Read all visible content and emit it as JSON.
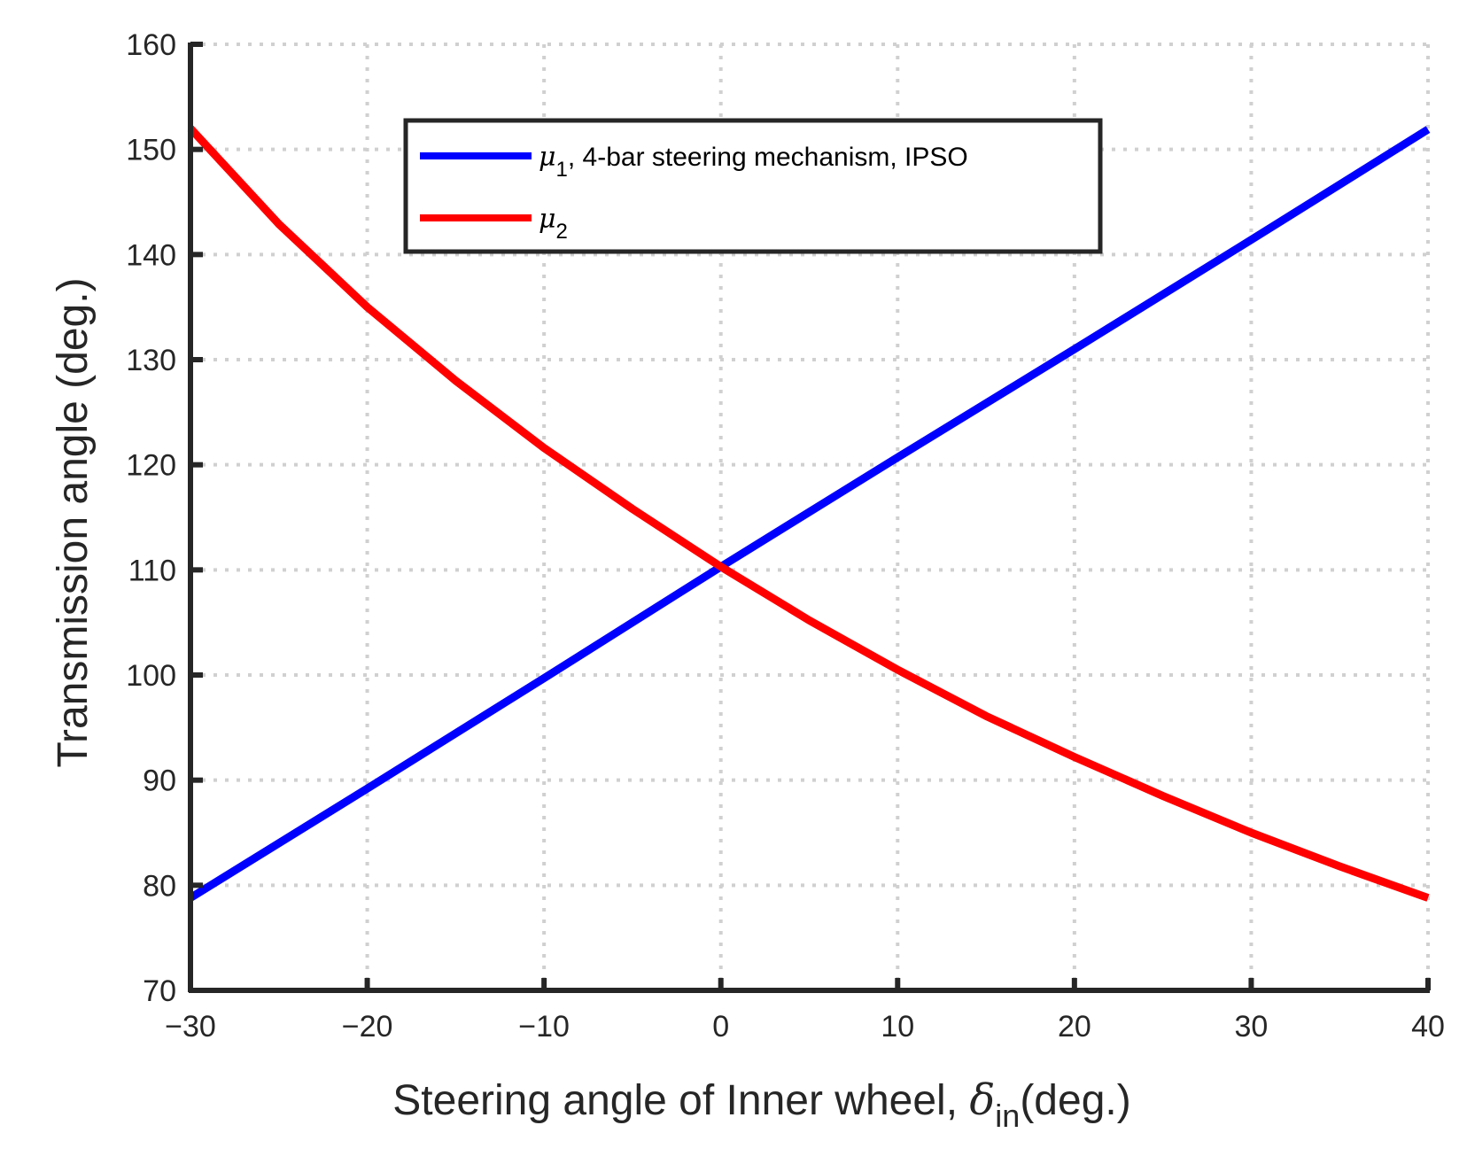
{
  "chart_data": {
    "type": "line",
    "title": "",
    "xlabel": {
      "main": "Steering angle of Inner wheel, ",
      "symbol": "δ",
      "subscript": "in",
      "suffix": "(deg.)"
    },
    "ylabel": "Transmission angle (deg.)",
    "xlim": [
      -30,
      40
    ],
    "ylim": [
      70,
      160
    ],
    "xticks": [
      -30,
      -20,
      -10,
      0,
      10,
      20,
      30,
      40
    ],
    "xtick_labels": [
      "−30",
      "−20",
      "−10",
      "0",
      "10",
      "20",
      "30",
      "40"
    ],
    "yticks": [
      70,
      80,
      90,
      100,
      110,
      120,
      130,
      140,
      150,
      160
    ],
    "ytick_labels": [
      "70",
      "80",
      "90",
      "100",
      "110",
      "120",
      "130",
      "140",
      "150",
      "160"
    ],
    "grid": true,
    "legend_position": "top-center",
    "series": [
      {
        "name": "mu1",
        "legend": {
          "symbol": "μ",
          "subscript": "1",
          "text": ", 4-bar steering mechanism, IPSO"
        },
        "color": "#0000ff",
        "x": [
          -30,
          -20,
          -10,
          0,
          10,
          20,
          30,
          40
        ],
        "y": [
          78.8,
          89.2,
          99.7,
          110.3,
          120.7,
          131.0,
          141.4,
          151.9
        ]
      },
      {
        "name": "mu2",
        "legend": {
          "symbol": "μ",
          "subscript": "2",
          "text": ""
        },
        "color": "#ff0000",
        "x": [
          -30,
          -25,
          -20,
          -15,
          -10,
          -5,
          0,
          5,
          10,
          15,
          20,
          25,
          30,
          35,
          40
        ],
        "y": [
          152.0,
          142.9,
          135.0,
          128.0,
          121.6,
          115.8,
          110.3,
          105.2,
          100.5,
          96.1,
          92.2,
          88.5,
          85.0,
          81.8,
          78.8
        ]
      }
    ]
  }
}
